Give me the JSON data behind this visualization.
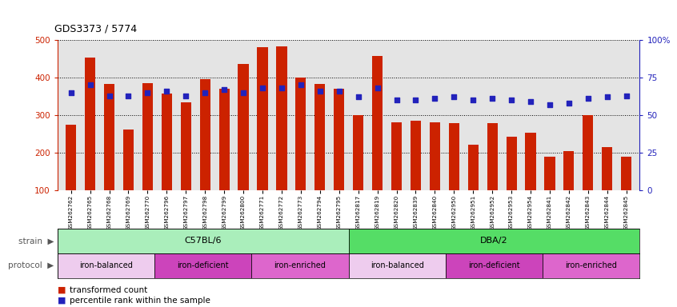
{
  "title": "GDS3373 / 5774",
  "samples": [
    "GSM262762",
    "GSM262765",
    "GSM262768",
    "GSM262769",
    "GSM262770",
    "GSM262796",
    "GSM262797",
    "GSM262798",
    "GSM262799",
    "GSM262800",
    "GSM262771",
    "GSM262772",
    "GSM262773",
    "GSM262794",
    "GSM262795",
    "GSM262817",
    "GSM262819",
    "GSM262820",
    "GSM262839",
    "GSM262840",
    "GSM262950",
    "GSM262951",
    "GSM262952",
    "GSM262953",
    "GSM262954",
    "GSM262841",
    "GSM262842",
    "GSM262843",
    "GSM262844",
    "GSM262845"
  ],
  "bar_values": [
    275,
    453,
    382,
    262,
    384,
    357,
    334,
    395,
    370,
    435,
    480,
    483,
    400,
    382,
    370,
    300,
    457,
    280,
    286,
    280,
    278,
    222,
    278,
    243,
    253,
    190,
    205,
    300,
    215,
    190
  ],
  "blue_values": [
    65,
    70,
    63,
    63,
    65,
    66,
    63,
    65,
    67,
    65,
    68,
    68,
    70,
    66,
    66,
    62,
    68,
    60,
    60,
    61,
    62,
    60,
    61,
    60,
    59,
    57,
    58,
    61,
    62,
    63
  ],
  "bar_color": "#CC2200",
  "blue_color": "#2222BB",
  "strain_groups": [
    {
      "label": "C57BL/6",
      "start": 0,
      "end": 15,
      "color": "#AAEEBB"
    },
    {
      "label": "DBA/2",
      "start": 15,
      "end": 30,
      "color": "#55DD66"
    }
  ],
  "protocol_groups": [
    {
      "label": "iron-balanced",
      "start": 0,
      "end": 5,
      "color": "#EECCEE"
    },
    {
      "label": "iron-deficient",
      "start": 5,
      "end": 10,
      "color": "#CC55CC"
    },
    {
      "label": "iron-enriched",
      "start": 10,
      "end": 15,
      "color": "#DD77DD"
    },
    {
      "label": "iron-balanced",
      "start": 15,
      "end": 20,
      "color": "#EECCEE"
    },
    {
      "label": "iron-deficient",
      "start": 20,
      "end": 25,
      "color": "#CC55CC"
    },
    {
      "label": "iron-enriched",
      "start": 25,
      "end": 30,
      "color": "#DD77DD"
    }
  ],
  "ylim_left": [
    100,
    500
  ],
  "ylim_right": [
    0,
    100
  ],
  "yticks_left": [
    100,
    200,
    300,
    400,
    500
  ],
  "yticks_right": [
    0,
    25,
    50,
    75,
    100
  ],
  "background_color": "#E4E4E4"
}
